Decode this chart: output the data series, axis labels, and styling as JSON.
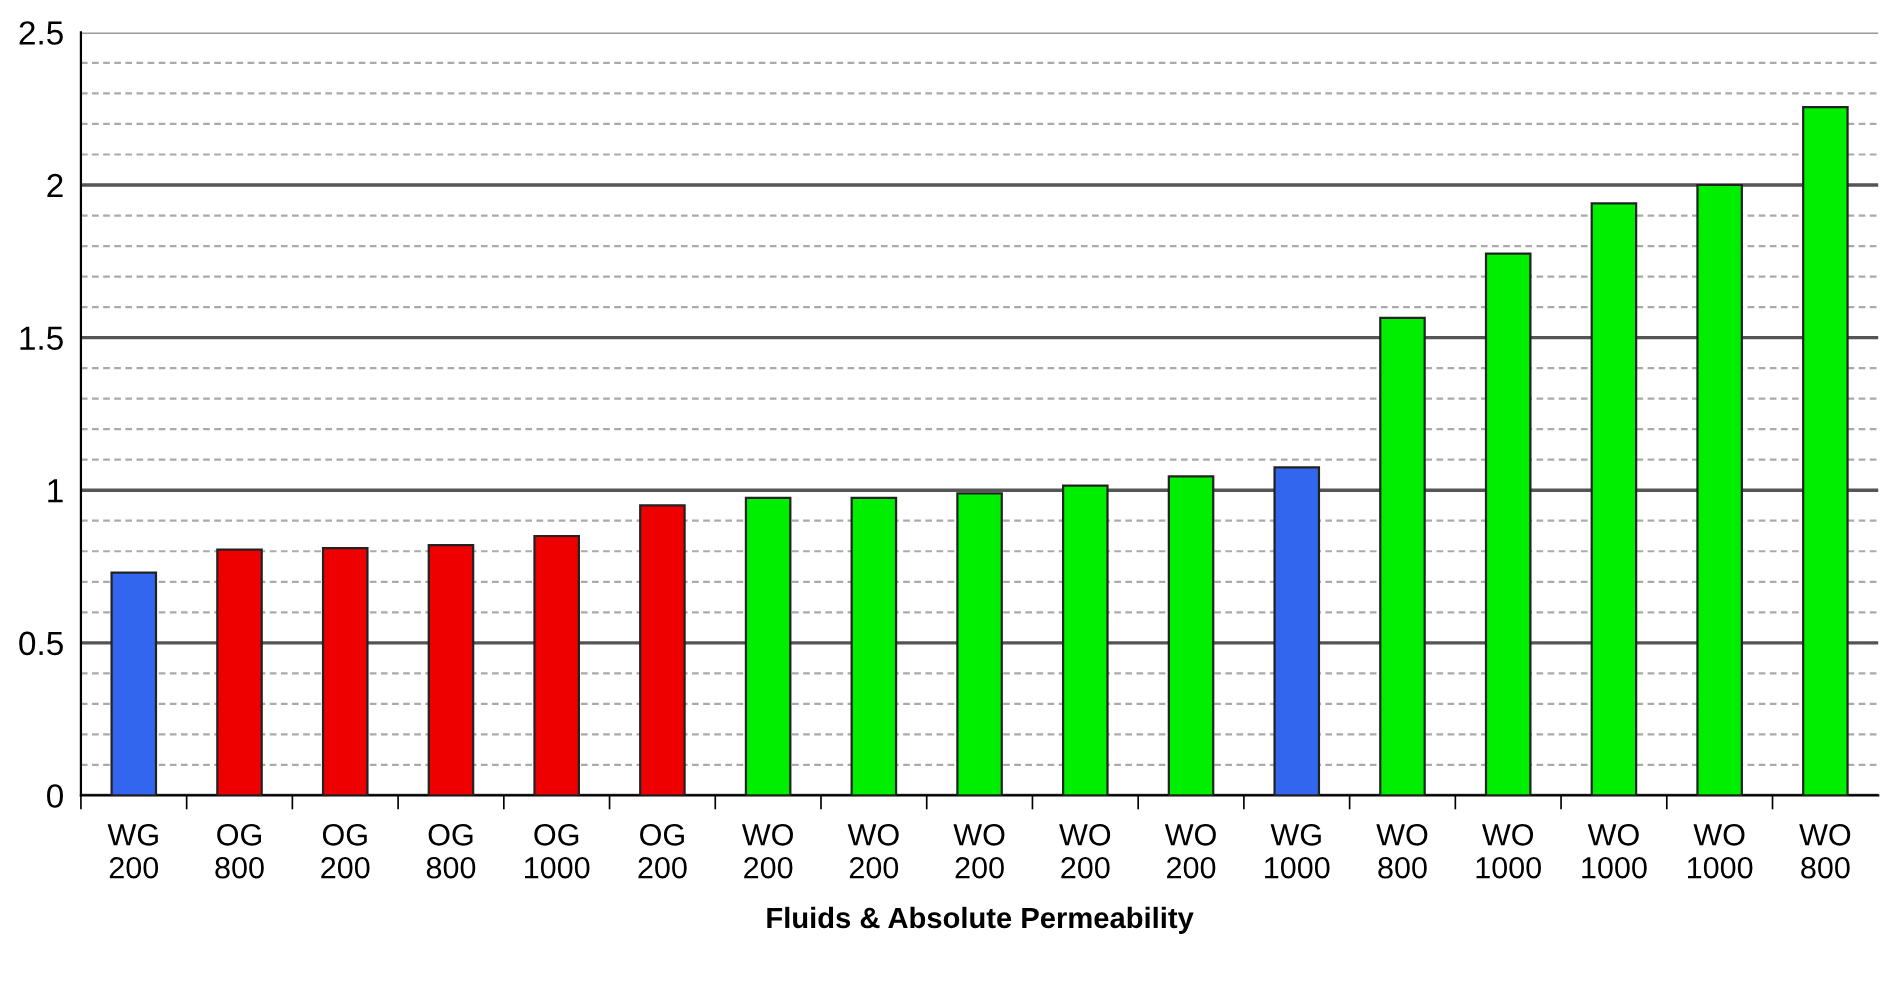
{
  "chart_data": {
    "type": "bar",
    "xlabel": "Fluids & Absolute Permeability",
    "categories": [
      "WG\n200",
      "OG\n800",
      "OG\n200",
      "OG\n800",
      "OG\n1000",
      "OG\n200",
      "WO\n200",
      "WO\n200",
      "WO\n200",
      "WO\n200",
      "WO\n200",
      "WG\n1000",
      "WO\n800",
      "WO\n1000",
      "WO\n1000",
      "WO\n1000",
      "WO\n800"
    ],
    "values": [
      0.73,
      0.805,
      0.81,
      0.82,
      0.85,
      0.95,
      0.975,
      0.975,
      0.99,
      1.015,
      1.045,
      1.075,
      1.565,
      1.775,
      1.94,
      2.0,
      2.255
    ],
    "colors": [
      "#3366ee",
      "#ee0000",
      "#ee0000",
      "#ee0000",
      "#ee0000",
      "#ee0000",
      "#00ee00",
      "#00ee00",
      "#00ee00",
      "#00ee00",
      "#00ee00",
      "#3366ee",
      "#00ee00",
      "#00ee00",
      "#00ee00",
      "#00ee00",
      "#00ee00"
    ],
    "ylim": [
      0,
      2.5
    ],
    "yticks": [
      0,
      {
        "value": 0.1,
        "label": null
      },
      {
        "value": 0.2,
        "label": null
      },
      {
        "value": 0.3,
        "label": null
      },
      {
        "value": 0.4,
        "label": null
      },
      0.5,
      {
        "value": 0.6,
        "label": null
      },
      {
        "value": 0.7,
        "label": null
      },
      {
        "value": 0.8,
        "label": null
      },
      {
        "value": 0.9,
        "label": null
      },
      1,
      {
        "value": 1.1,
        "label": null
      },
      {
        "value": 1.2,
        "label": null
      },
      {
        "value": 1.3,
        "label": null
      },
      {
        "value": 1.4,
        "label": null
      },
      1.5,
      {
        "value": 1.6,
        "label": null
      },
      {
        "value": 1.7,
        "label": null
      },
      {
        "value": 1.8,
        "label": null
      },
      {
        "value": 1.9,
        "label": null
      },
      2,
      {
        "value": 2.1,
        "label": null
      },
      {
        "value": 2.2,
        "label": null
      },
      {
        "value": 2.3,
        "label": null
      },
      {
        "value": 2.4,
        "label": null
      },
      2.5
    ],
    "grid": "y",
    "legend": false
  }
}
